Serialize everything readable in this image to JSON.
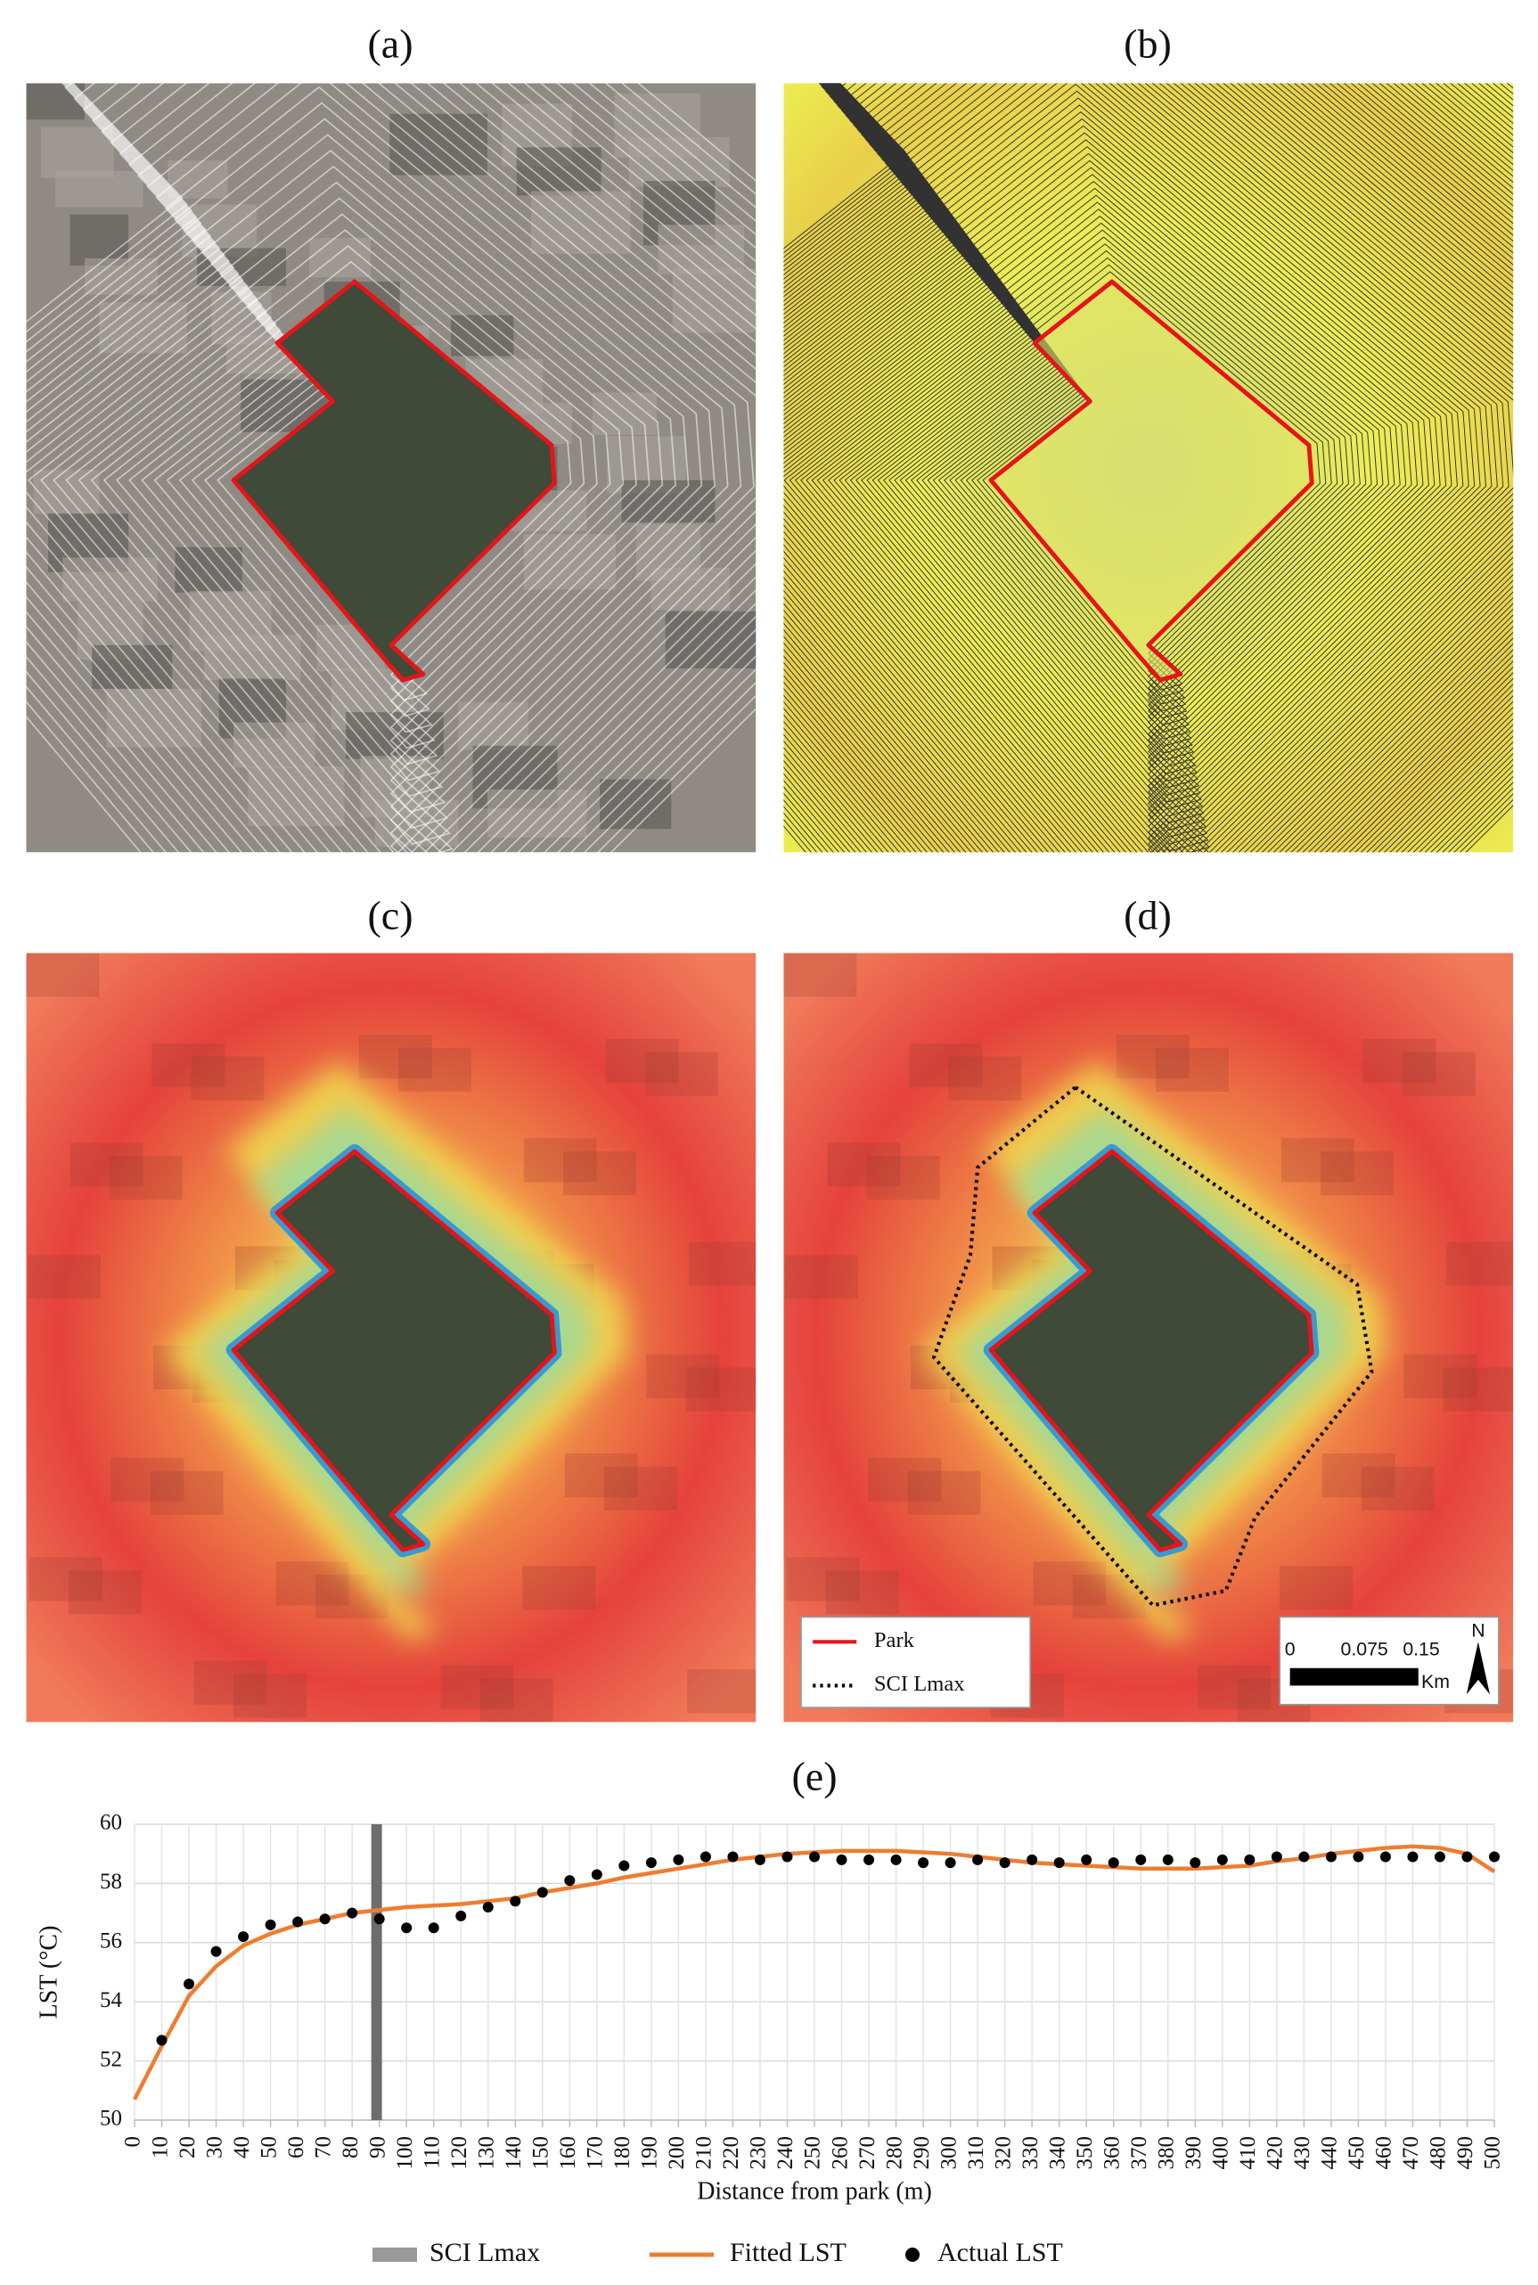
{
  "panels": [
    {
      "label": "(a)"
    },
    {
      "label": "(b)"
    },
    {
      "label": "(c)"
    },
    {
      "label": "(d)"
    }
  ],
  "map_legend": {
    "items": [
      "Park",
      "SCI Lmax"
    ]
  },
  "scale_bar": {
    "labels": [
      "0",
      "0.075",
      "0.15"
    ],
    "unit": "Km"
  },
  "north": "N",
  "chart_data": {
    "type": "line",
    "title": "(e)",
    "x_label": "Distance from park (m)",
    "y_label": "LST (°C)",
    "xlim": [
      0,
      500
    ],
    "ylim": [
      50,
      60
    ],
    "xticks": [
      0,
      10,
      20,
      30,
      40,
      50,
      60,
      70,
      80,
      90,
      100,
      110,
      120,
      130,
      140,
      150,
      160,
      170,
      180,
      190,
      200,
      210,
      220,
      230,
      240,
      250,
      260,
      270,
      280,
      290,
      300,
      310,
      320,
      330,
      340,
      350,
      360,
      370,
      380,
      390,
      400,
      410,
      420,
      430,
      440,
      450,
      460,
      470,
      480,
      490,
      500
    ],
    "yticks": [
      50,
      52,
      54,
      56,
      58,
      60
    ],
    "grid": true,
    "series": [
      {
        "name": "SCI Lmax",
        "color": "#6d6d6d",
        "style": "vline",
        "x": [
          89
        ]
      },
      {
        "name": "Fitted LST",
        "color": "#ed7d31",
        "style": "line",
        "x": [
          0,
          10,
          20,
          30,
          40,
          50,
          60,
          70,
          80,
          90,
          100,
          110,
          120,
          130,
          140,
          150,
          160,
          170,
          180,
          190,
          200,
          210,
          220,
          230,
          240,
          250,
          260,
          270,
          280,
          290,
          300,
          310,
          320,
          330,
          340,
          350,
          360,
          370,
          380,
          390,
          400,
          410,
          420,
          430,
          440,
          450,
          460,
          470,
          480,
          490,
          500
        ],
        "values": [
          50.7,
          52.5,
          54.2,
          55.2,
          55.9,
          56.3,
          56.6,
          56.8,
          57.0,
          57.1,
          57.2,
          57.25,
          57.3,
          57.4,
          57.5,
          57.7,
          57.85,
          58.0,
          58.2,
          58.35,
          58.5,
          58.65,
          58.8,
          58.9,
          59.0,
          59.05,
          59.1,
          59.1,
          59.1,
          59.05,
          59.0,
          58.9,
          58.8,
          58.7,
          58.65,
          58.6,
          58.55,
          58.5,
          58.5,
          58.5,
          58.55,
          58.6,
          58.75,
          58.85,
          59.0,
          59.1,
          59.2,
          59.25,
          59.2,
          59.0,
          58.4
        ]
      },
      {
        "name": "Actual LST",
        "color": "#000000",
        "style": "dot",
        "x": [
          10,
          20,
          30,
          40,
          50,
          60,
          70,
          80,
          90,
          100,
          110,
          120,
          130,
          140,
          150,
          160,
          170,
          180,
          190,
          200,
          210,
          220,
          230,
          240,
          250,
          260,
          270,
          280,
          290,
          300,
          310,
          320,
          330,
          340,
          350,
          360,
          370,
          380,
          390,
          400,
          410,
          420,
          430,
          440,
          450,
          460,
          470,
          480,
          490,
          500
        ],
        "values": [
          52.7,
          54.6,
          55.7,
          56.2,
          56.6,
          56.7,
          56.8,
          57.0,
          56.8,
          56.5,
          56.5,
          56.9,
          57.2,
          57.4,
          57.7,
          58.1,
          58.3,
          58.6,
          58.7,
          58.8,
          58.9,
          58.9,
          58.8,
          58.9,
          58.9,
          58.8,
          58.8,
          58.8,
          58.7,
          58.7,
          58.8,
          58.7,
          58.8,
          58.7,
          58.8,
          58.7,
          58.8,
          58.8,
          58.7,
          58.8,
          58.8,
          58.9,
          58.9,
          58.9,
          58.9,
          58.9,
          58.9,
          58.9,
          58.9,
          58.9
        ]
      }
    ]
  }
}
